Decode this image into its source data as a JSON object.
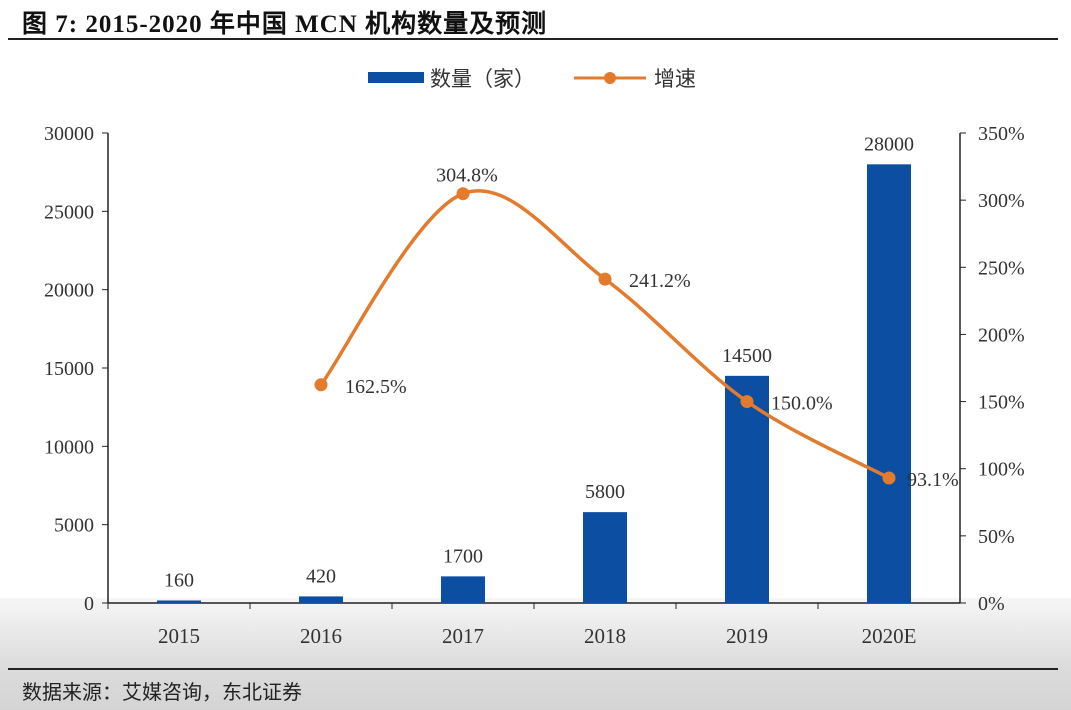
{
  "title": "图 7: 2015-2020 年中国 MCN 机构数量及预测",
  "source": "数据来源：艾媒咨询，东北证券",
  "chart_data": {
    "type": "bar+line",
    "categories": [
      "2015",
      "2016",
      "2017",
      "2018",
      "2019",
      "2020E"
    ],
    "series": [
      {
        "name": "数量（家）",
        "type": "bar",
        "axis": "left",
        "color": "#0b4ea2",
        "values": [
          160,
          420,
          1700,
          5800,
          14500,
          28000
        ],
        "labels": [
          "160",
          "420",
          "1700",
          "5800",
          "14500",
          "28000"
        ]
      },
      {
        "name": "增速",
        "type": "line",
        "axis": "right",
        "color": "#e27b2e",
        "smooth": true,
        "values": [
          null,
          162.5,
          304.8,
          241.2,
          150.0,
          93.1
        ],
        "labels": [
          "",
          "162.5%",
          "304.8%",
          "241.2%",
          "150.0%",
          "93.1%"
        ]
      }
    ],
    "left_axis": {
      "ylim": [
        0,
        30000
      ],
      "ticks": [
        "0",
        "5000",
        "10000",
        "15000",
        "20000",
        "25000",
        "30000"
      ]
    },
    "right_axis": {
      "ylim": [
        0,
        350
      ],
      "ticks": [
        "0%",
        "50%",
        "100%",
        "150%",
        "200%",
        "250%",
        "300%",
        "350%"
      ]
    },
    "grid": false,
    "legend": "top-center"
  }
}
